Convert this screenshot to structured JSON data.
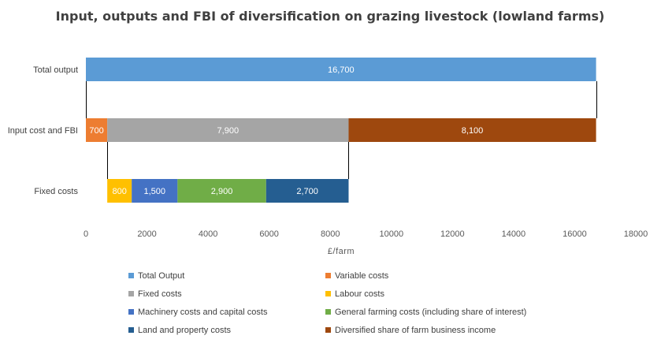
{
  "chart_data": {
    "type": "bar",
    "orientation": "horizontal",
    "stacked": true,
    "title": "Input, outputs and FBI of diversification on grazing livestock (lowland farms)",
    "xlabel": "£/farm",
    "ylabel": "",
    "xlim": [
      0,
      18000
    ],
    "xticks": [
      0,
      2000,
      4000,
      6000,
      8000,
      10000,
      12000,
      14000,
      16000,
      18000
    ],
    "categories": [
      "Total output",
      "Input cost and FBI",
      "Fixed costs"
    ],
    "grid": false,
    "legend_position": "bottom",
    "segments": [
      {
        "category": "Total output",
        "series": "Total Output",
        "start": 0,
        "value": 16700,
        "label": "16,700"
      },
      {
        "category": "Input cost and FBI",
        "series": "Variable costs",
        "start": 0,
        "value": 700,
        "label": "700"
      },
      {
        "category": "Input cost and FBI",
        "series": "Fixed costs",
        "start": 700,
        "value": 7900,
        "label": "7,900"
      },
      {
        "category": "Input cost and FBI",
        "series": "Diversified share of farm business income",
        "start": 8600,
        "value": 8100,
        "label": "8,100"
      },
      {
        "category": "Fixed costs",
        "series": "Labour costs",
        "start": 700,
        "value": 800,
        "label": "800"
      },
      {
        "category": "Fixed costs",
        "series": "Machinery costs and capital costs",
        "start": 1500,
        "value": 1500,
        "label": "1,500"
      },
      {
        "category": "Fixed costs",
        "series": "General farming costs (including share of interest)",
        "start": 3000,
        "value": 2900,
        "label": "2,900"
      },
      {
        "category": "Fixed costs",
        "series": "Land and property costs",
        "start": 5900,
        "value": 2700,
        "label": "2,700"
      }
    ],
    "series": [
      {
        "name": "Total Output",
        "color": "#5B9BD5"
      },
      {
        "name": "Variable costs",
        "color": "#ED7D31"
      },
      {
        "name": "Fixed costs",
        "color": "#A5A5A5"
      },
      {
        "name": "Labour costs",
        "color": "#FFC000"
      },
      {
        "name": "Machinery costs and capital costs",
        "color": "#4472C4"
      },
      {
        "name": "General farming costs (including share of interest)",
        "color": "#70AD47"
      },
      {
        "name": "Land and property costs",
        "color": "#255E91"
      },
      {
        "name": "Diversified share of farm business income",
        "color": "#9E480E"
      }
    ],
    "connector_lines": [
      {
        "x": 0,
        "from": "Total output",
        "to": "Input cost and FBI"
      },
      {
        "x": 16700,
        "from": "Total output",
        "to": "Input cost and FBI"
      },
      {
        "x": 700,
        "from": "Input cost and FBI",
        "to": "Fixed costs"
      },
      {
        "x": 8600,
        "from": "Input cost and FBI",
        "to": "Fixed costs"
      }
    ]
  }
}
